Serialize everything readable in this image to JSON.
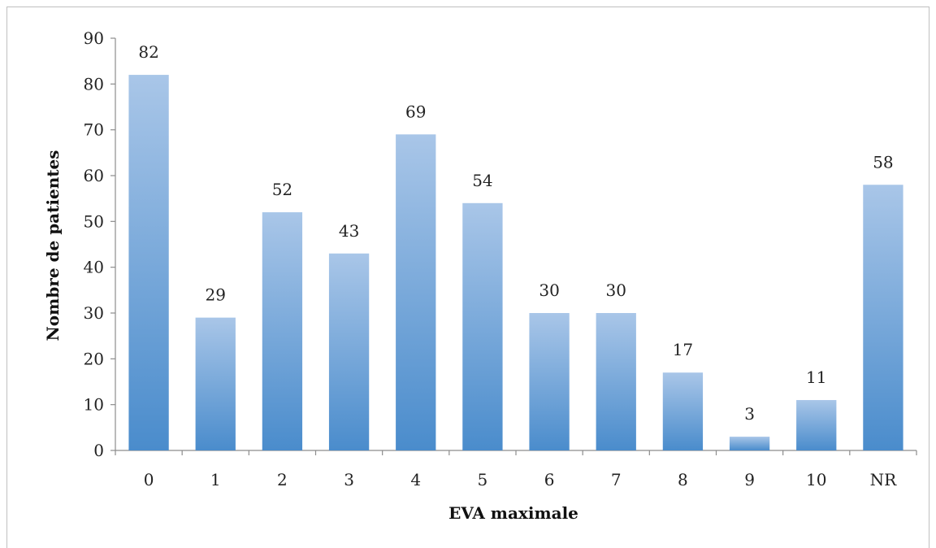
{
  "chart_data": {
    "type": "bar",
    "xlabel": "EVA maximale",
    "ylabel": "Nombre de patientes",
    "categories": [
      "0",
      "1",
      "2",
      "3",
      "4",
      "5",
      "6",
      "7",
      "8",
      "9",
      "10",
      "NR"
    ],
    "values": [
      82,
      29,
      52,
      43,
      69,
      54,
      30,
      30,
      17,
      3,
      11,
      58
    ],
    "ylim": [
      0,
      90
    ],
    "yticks": [
      0,
      10,
      20,
      30,
      40,
      50,
      60,
      70,
      80,
      90
    ],
    "data_labels": true,
    "grid": false,
    "legend": "none",
    "colors": {
      "bar_top": "#a9c6e8",
      "bar_bottom": "#4a8ccc",
      "axis": "#8c8c8c"
    }
  }
}
